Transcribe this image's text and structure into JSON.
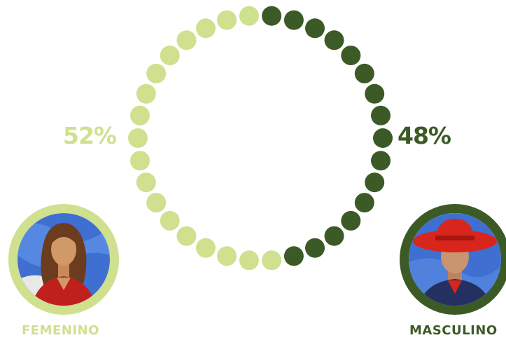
{
  "chart_data": {
    "type": "pie",
    "style": "dotted-ring",
    "dot_count": 34,
    "series": [
      {
        "name": "FEMENINO",
        "value": 52,
        "label": "52%",
        "color": "#cfe08e"
      },
      {
        "name": "MASCULINO",
        "value": 48,
        "label": "48%",
        "color": "#3c5a26"
      }
    ]
  },
  "avatars": {
    "female": {
      "icon": "female-portrait-icon",
      "border_color": "#cfe08e"
    },
    "male": {
      "icon": "male-portrait-icon",
      "border_color": "#3c5a26"
    }
  }
}
